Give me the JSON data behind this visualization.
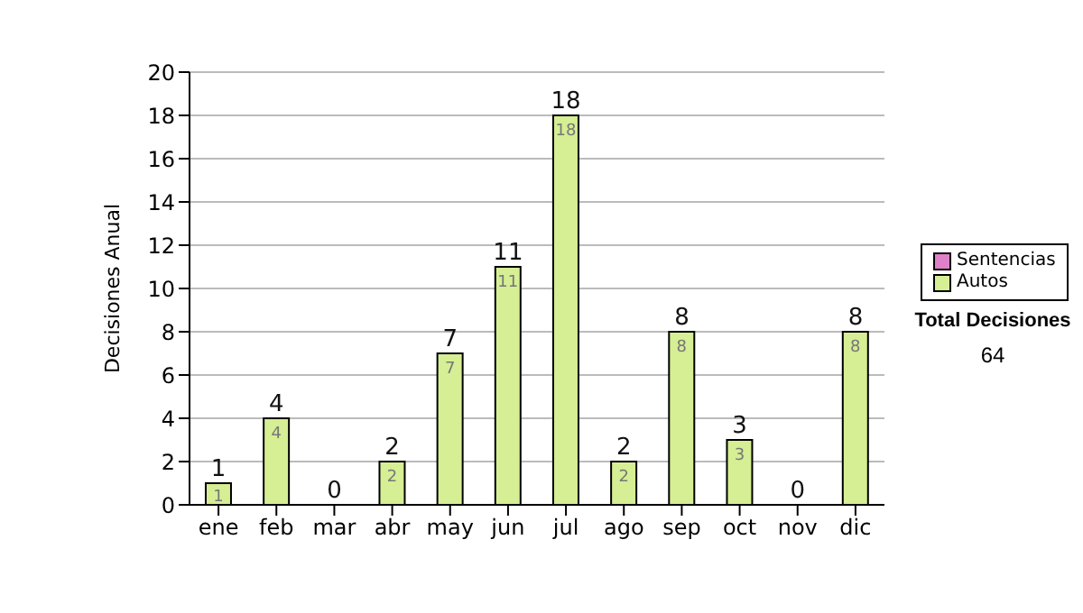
{
  "chart_data": {
    "type": "bar",
    "stacked": true,
    "categories": [
      "ene",
      "feb",
      "mar",
      "abr",
      "may",
      "jun",
      "jul",
      "ago",
      "sep",
      "oct",
      "nov",
      "dic"
    ],
    "series": [
      {
        "name": "Sentencias",
        "color": "#e080c8",
        "values": [
          0,
          0,
          0,
          0,
          0,
          0,
          0,
          0,
          0,
          0,
          0,
          0
        ]
      },
      {
        "name": "Autos",
        "color": "#d6ee94",
        "values": [
          1,
          4,
          0,
          2,
          7,
          11,
          18,
          2,
          8,
          3,
          0,
          8
        ],
        "value_labels": [
          "1",
          "4",
          null,
          "2",
          "7",
          "11",
          "18",
          "2",
          "8",
          "3",
          null,
          "8"
        ]
      }
    ],
    "totals": [
      "1",
      "4",
      "0",
      "2",
      "7",
      "11",
      "18",
      "2",
      "8",
      "3",
      "0",
      "8"
    ],
    "ylabel": "Decisiones Anual",
    "ylim": [
      0,
      20
    ],
    "yticks": [
      0,
      2,
      4,
      6,
      8,
      10,
      12,
      14,
      16,
      18,
      20
    ],
    "grid": "y",
    "legend": "right",
    "annotations": [
      "Total Decisiones",
      "64"
    ]
  }
}
